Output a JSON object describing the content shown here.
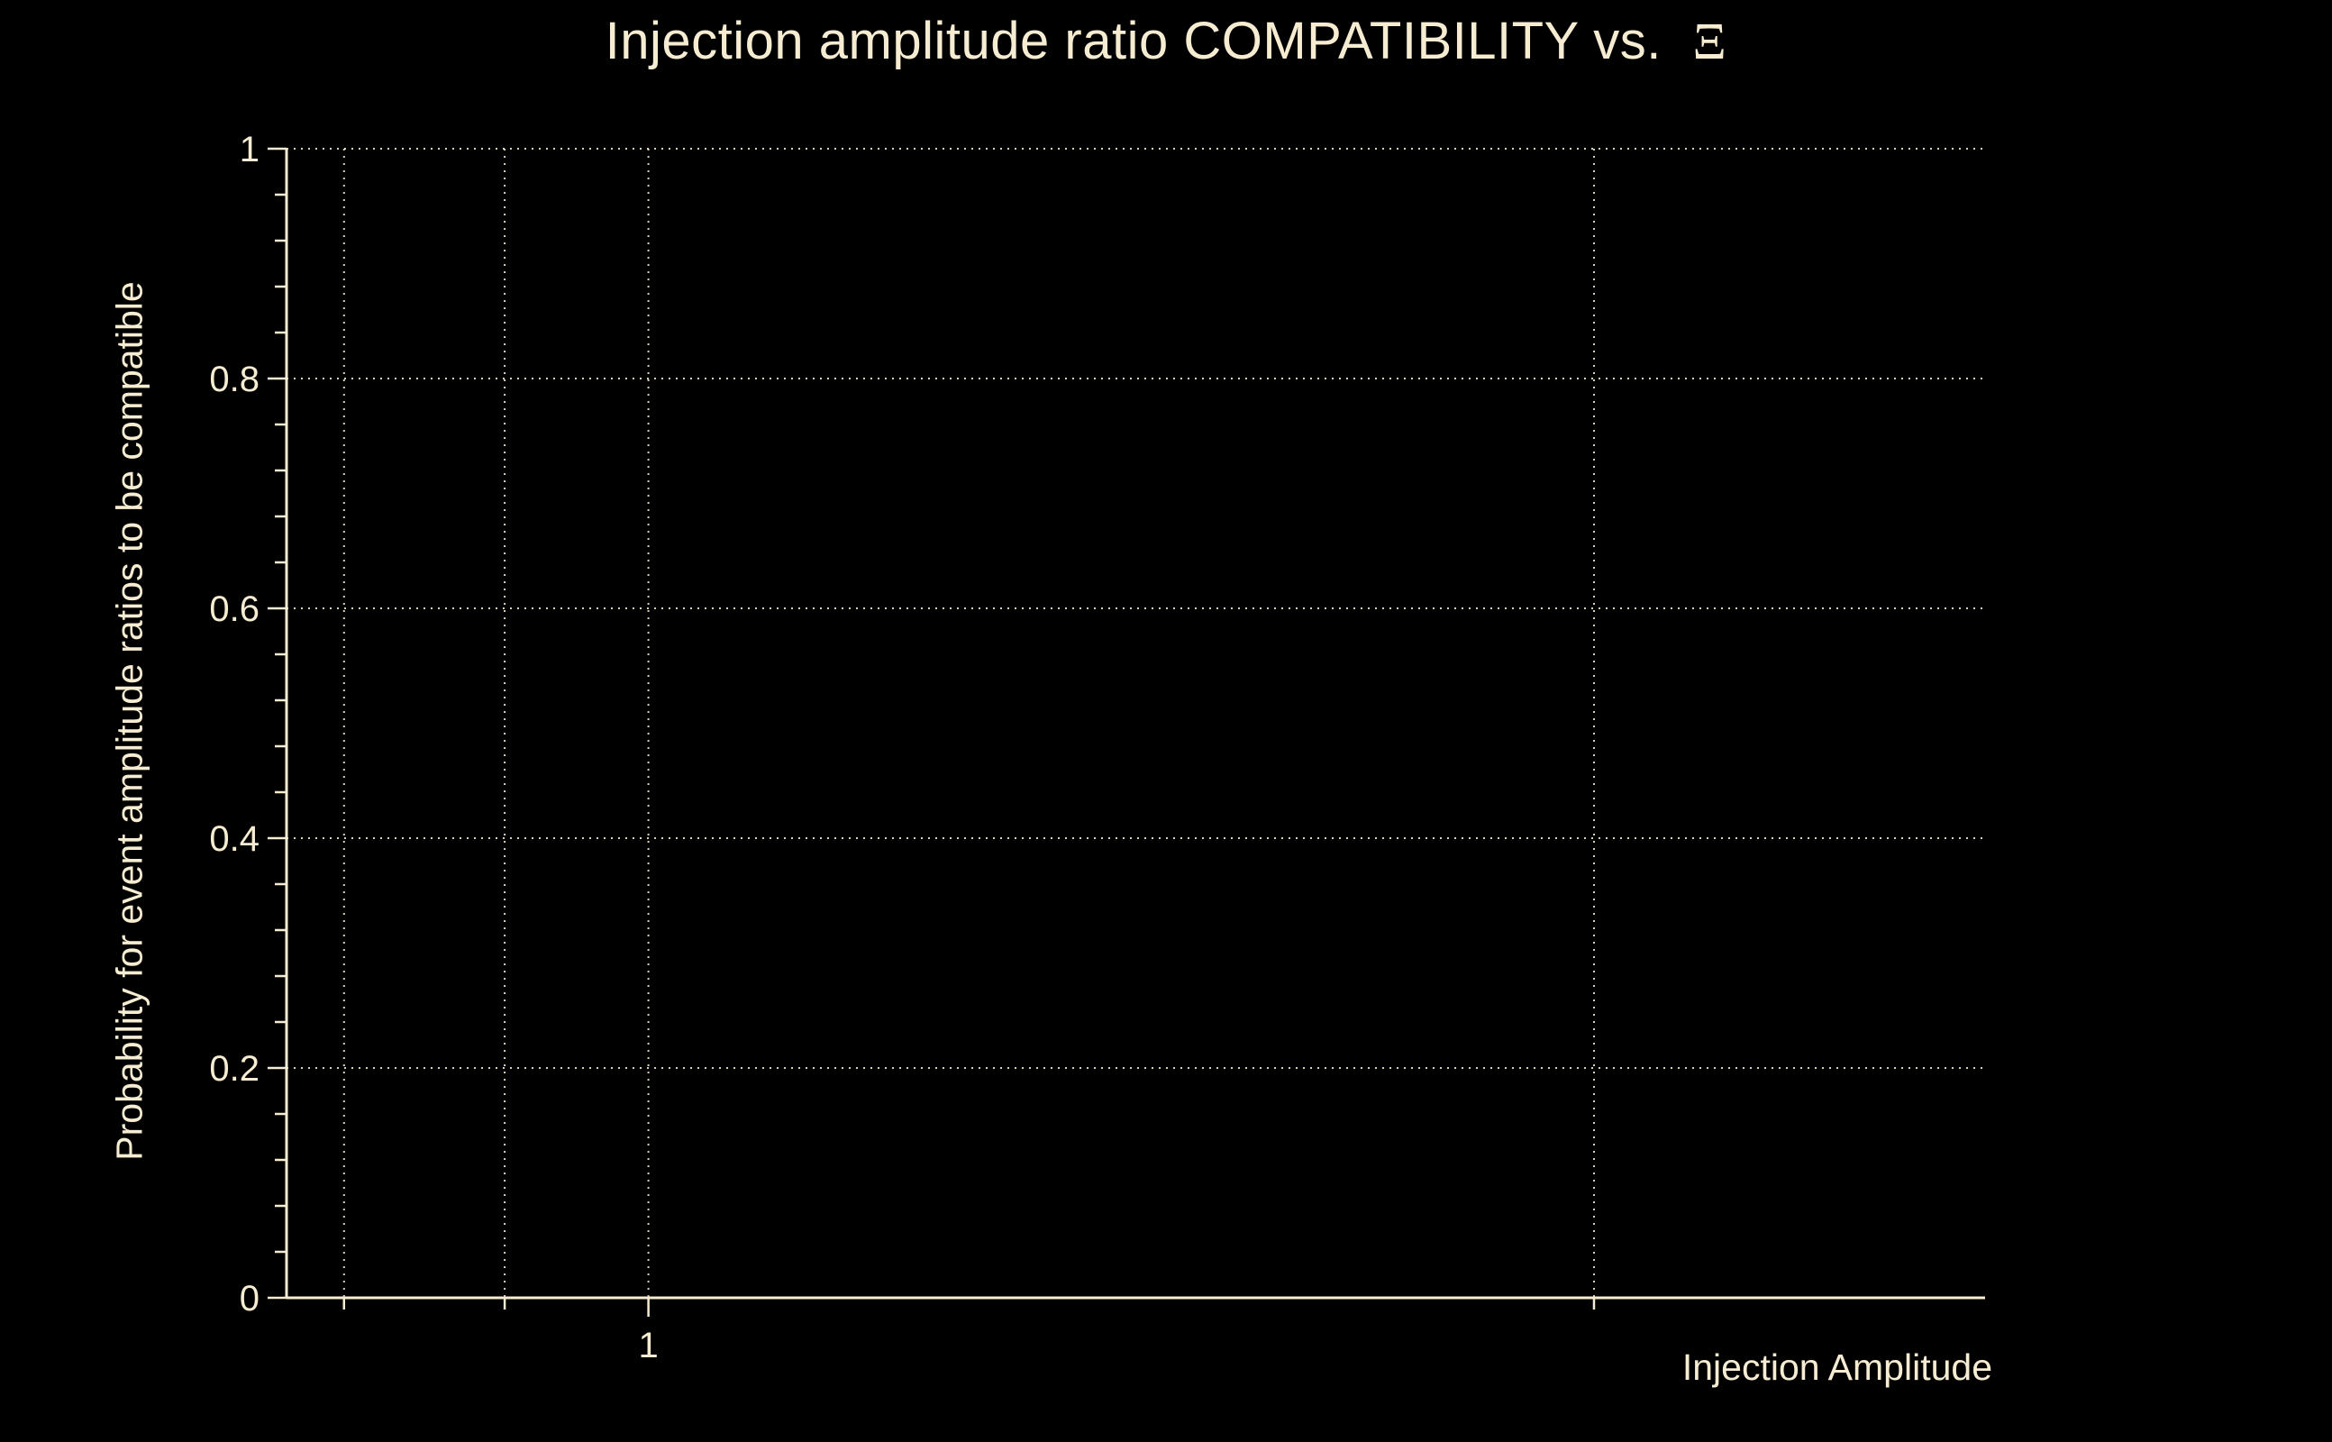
{
  "chart_data": {
    "type": "scatter",
    "title_main": "Injection amplitude ratio COMPATIBILITY vs. ",
    "title_symbol": "Ξ",
    "xlabel": "Injection Amplitude",
    "ylabel": "Probability for event amplitude ratios to be compatible",
    "x_scale": "log",
    "xlim": [
      0.767,
      2.664
    ],
    "ylim": [
      0,
      1
    ],
    "x_ticks": [
      {
        "value": 1,
        "label": "1"
      }
    ],
    "x_minor_ticks": [
      0.8,
      0.9,
      2
    ],
    "x_gridlines": [
      0.8,
      0.9,
      1,
      2
    ],
    "y_ticks": [
      {
        "value": 0,
        "label": "0"
      },
      {
        "value": 0.2,
        "label": "0.2"
      },
      {
        "value": 0.4,
        "label": "0.4"
      },
      {
        "value": 0.6,
        "label": "0.6"
      },
      {
        "value": 0.8,
        "label": "0.8"
      },
      {
        "value": 1,
        "label": "1"
      }
    ],
    "y_minor_step": 0.04,
    "y_gridlines": [
      0.2,
      0.4,
      0.6,
      0.8,
      1
    ],
    "grid": true,
    "series": []
  },
  "colors": {
    "background": "#000000",
    "foreground": "#f6ecd2",
    "grid": "#f6ecd2"
  }
}
